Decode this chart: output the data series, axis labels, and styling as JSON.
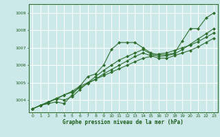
{
  "xlabel": "Graphe pression niveau de la mer (hPa)",
  "background_color": "#cce8e8",
  "grid_color": "#ffffff",
  "line_color": "#2d6e2d",
  "marker_color": "#2d6e2d",
  "ylim": [
    1003.3,
    1009.5
  ],
  "xlim": [
    -0.5,
    23.5
  ],
  "yticks": [
    1004,
    1005,
    1006,
    1007,
    1008,
    1009
  ],
  "xticks": [
    0,
    1,
    2,
    3,
    4,
    5,
    6,
    7,
    8,
    9,
    10,
    11,
    12,
    13,
    14,
    15,
    16,
    17,
    18,
    19,
    20,
    21,
    22,
    23
  ],
  "series": [
    {
      "x": [
        0,
        1,
        2,
        3,
        4,
        5,
        6,
        7,
        8,
        9,
        10,
        11,
        12,
        13,
        14,
        15,
        16,
        17,
        18,
        19,
        20,
        21,
        22,
        23
      ],
      "y": [
        1003.5,
        1003.7,
        1003.8,
        1003.9,
        1003.8,
        1004.3,
        1004.8,
        1005.35,
        1005.5,
        1006.0,
        1006.9,
        1007.3,
        1007.3,
        1007.3,
        1007.0,
        1006.7,
        1006.6,
        1006.6,
        1006.7,
        1007.4,
        1008.1,
        1008.1,
        1008.7,
        1009.0
      ]
    },
    {
      "x": [
        0,
        1,
        2,
        3,
        4,
        5,
        6,
        7,
        8,
        9,
        10,
        11,
        12,
        13,
        14,
        15,
        16,
        17,
        18,
        19,
        20,
        21,
        22,
        23
      ],
      "y": [
        1003.5,
        1003.7,
        1003.9,
        1004.1,
        1004.3,
        1004.5,
        1004.8,
        1005.0,
        1005.2,
        1005.4,
        1005.6,
        1005.8,
        1006.0,
        1006.2,
        1006.4,
        1006.5,
        1006.65,
        1006.7,
        1006.85,
        1007.0,
        1007.15,
        1007.35,
        1007.6,
        1007.85
      ]
    },
    {
      "x": [
        0,
        1,
        2,
        3,
        4,
        5,
        6,
        7,
        8,
        9,
        10,
        11,
        12,
        13,
        14,
        15,
        16,
        17,
        18,
        19,
        20,
        21,
        22,
        23
      ],
      "y": [
        1003.5,
        1003.7,
        1003.85,
        1004.1,
        1004.0,
        1004.2,
        1004.6,
        1005.0,
        1005.35,
        1005.7,
        1006.0,
        1006.3,
        1006.5,
        1006.7,
        1006.9,
        1006.65,
        1006.5,
        1006.55,
        1006.65,
        1006.9,
        1007.2,
        1007.5,
        1007.8,
        1008.1
      ]
    },
    {
      "x": [
        0,
        1,
        2,
        3,
        4,
        5,
        6,
        7,
        8,
        9,
        10,
        11,
        12,
        13,
        14,
        15,
        16,
        17,
        18,
        19,
        20,
        21,
        22,
        23
      ],
      "y": [
        1003.5,
        1003.7,
        1003.9,
        1004.05,
        1004.3,
        1004.45,
        1004.7,
        1004.95,
        1005.2,
        1005.5,
        1005.75,
        1006.0,
        1006.25,
        1006.5,
        1006.7,
        1006.55,
        1006.4,
        1006.4,
        1006.55,
        1006.7,
        1006.85,
        1007.05,
        1007.3,
        1007.55
      ]
    }
  ]
}
